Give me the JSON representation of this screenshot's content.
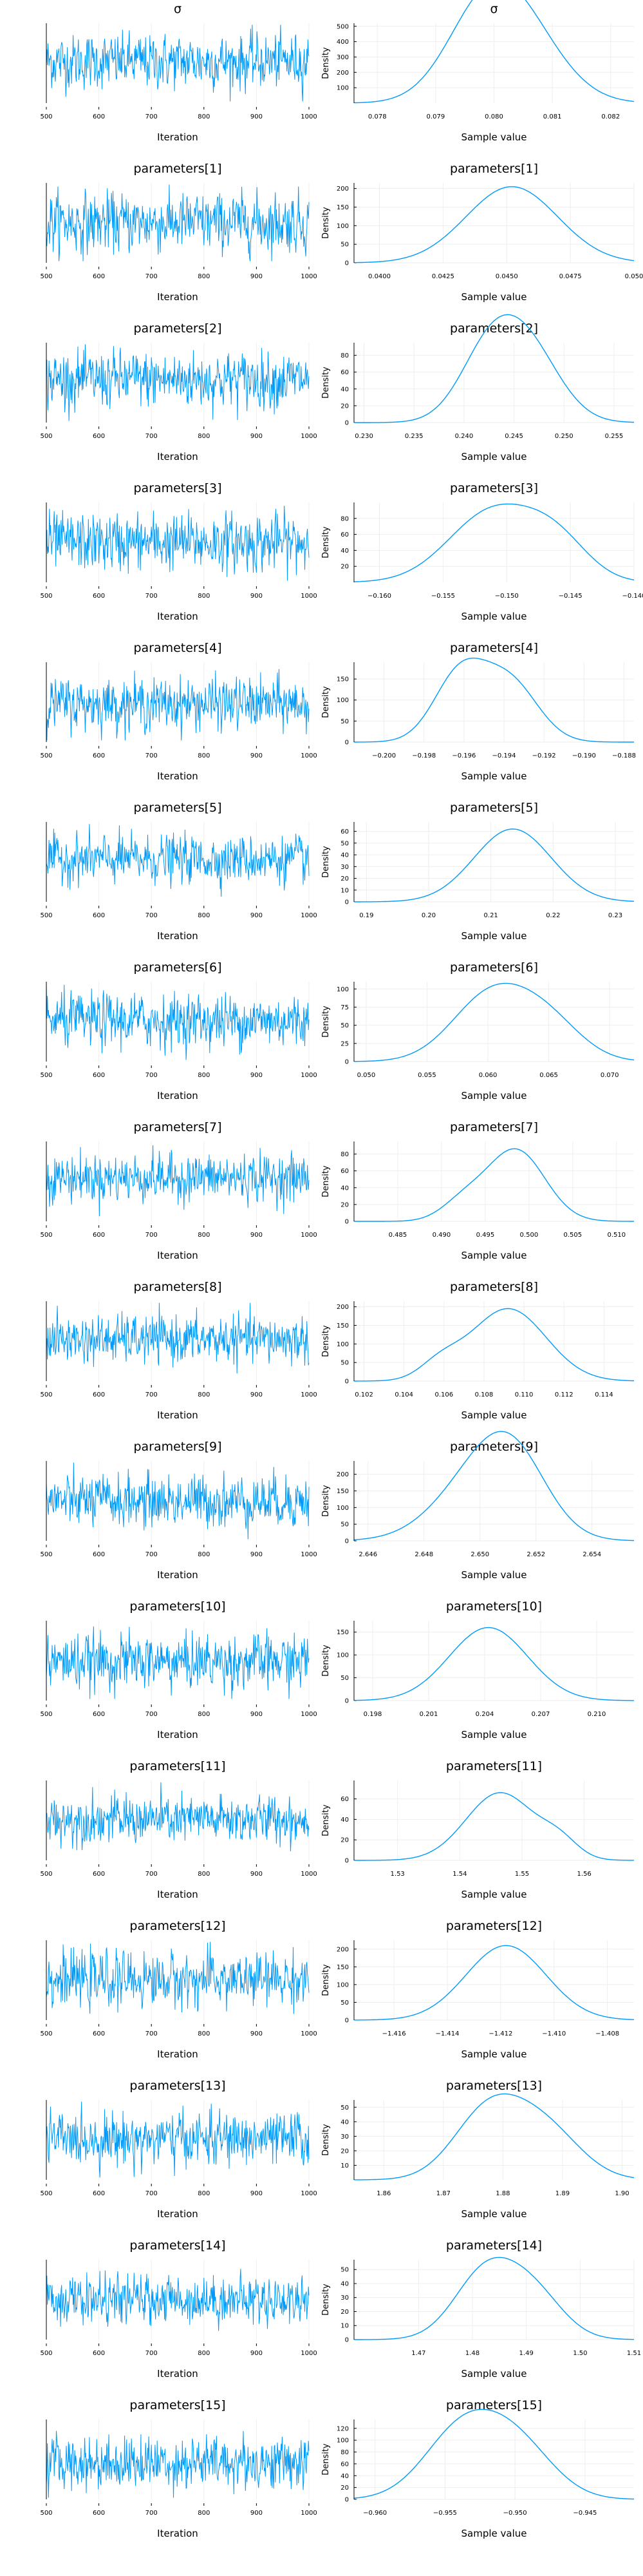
{
  "figure": {
    "title": "",
    "trace_xlabel": "Iteration",
    "density_xlabel": "Sample value",
    "density_ylabel": "Density",
    "line_color": "#009af9",
    "axis_color": "#000000",
    "grid_color": "#eeeeee",
    "iterations": [
      500,
      1000
    ],
    "trace_xticks": [
      500,
      600,
      700,
      800,
      900,
      1000
    ],
    "layout": "rows of trace plot (left) and density plot (right)"
  },
  "chart_data": [
    {
      "title": "σ",
      "trace": {
        "type": "line",
        "xlabel": "Iteration",
        "xlim": [
          500,
          1000
        ],
        "ylim": [
          0.0776,
          0.0824
        ],
        "mean": 0.0801,
        "sd": 0.0008
      },
      "density": {
        "type": "area",
        "xlabel": "Sample value",
        "ylabel": "Density",
        "xticks": [
          "0.078",
          "0.079",
          "0.080",
          "0.081",
          "0.082"
        ],
        "xlim": [
          0.0776,
          0.0824
        ],
        "yticks": [
          "100",
          "200",
          "300",
          "400",
          "500"
        ],
        "ylim": [
          0,
          520
        ],
        "peaks": [
          {
            "x": 0.0798,
            "y": 500,
            "w": 0.00065
          },
          {
            "x": 0.0805,
            "y": 410,
            "w": 0.0007
          }
        ]
      }
    },
    {
      "title": "parameters[1]",
      "trace": {
        "type": "line",
        "xlabel": "Iteration",
        "xlim": [
          500,
          1000
        ],
        "ylim": [
          0.0395,
          0.05
        ],
        "mean": 0.0448,
        "sd": 0.0019
      },
      "density": {
        "type": "area",
        "xlabel": "Sample value",
        "ylabel": "Density",
        "xticks": [
          "0.0400",
          "0.0425",
          "0.0450",
          "0.0475",
          "0.050"
        ],
        "xlim": [
          0.039,
          0.05
        ],
        "yticks": [
          "0",
          "50",
          "100",
          "150",
          "200"
        ],
        "ylim": [
          0,
          215
        ],
        "peaks": [
          {
            "x": 0.0452,
            "y": 205,
            "w": 0.0018
          }
        ]
      }
    },
    {
      "title": "parameters[2]",
      "trace": {
        "type": "line",
        "xlabel": "Iteration",
        "xlim": [
          500,
          1000
        ],
        "ylim": [
          0.23,
          0.256
        ],
        "mean": 0.244,
        "sd": 0.0045
      },
      "density": {
        "type": "area",
        "xlabel": "Sample value",
        "ylabel": "Density",
        "xticks": [
          "0.230",
          "0.235",
          "0.240",
          "0.245",
          "0.250",
          "0.255"
        ],
        "xlim": [
          0.229,
          0.257
        ],
        "yticks": [
          "0",
          "20",
          "40",
          "60",
          "80"
        ],
        "ylim": [
          0,
          95
        ],
        "peaks": [
          {
            "x": 0.2425,
            "y": 78,
            "w": 0.003
          },
          {
            "x": 0.2465,
            "y": 80,
            "w": 0.0032
          }
        ]
      }
    },
    {
      "title": "parameters[3]",
      "trace": {
        "type": "line",
        "xlabel": "Iteration",
        "xlim": [
          500,
          1000
        ],
        "ylim": [
          -0.162,
          -0.139
        ],
        "mean": -0.1505,
        "sd": 0.004
      },
      "density": {
        "type": "area",
        "xlabel": "Sample value",
        "ylabel": "Density",
        "xticks": [
          "-0.160",
          "-0.155",
          "-0.150",
          "-0.145",
          "-0.140"
        ],
        "xlim": [
          -0.162,
          -0.14
        ],
        "yticks": [
          "20",
          "40",
          "60",
          "80"
        ],
        "ylim": [
          0,
          100
        ],
        "peaks": [
          {
            "x": -0.151,
            "y": 90,
            "w": 0.0035
          },
          {
            "x": -0.146,
            "y": 42,
            "w": 0.0025
          }
        ]
      }
    },
    {
      "title": "parameters[4]",
      "trace": {
        "type": "line",
        "xlabel": "Iteration",
        "xlim": [
          500,
          1000
        ],
        "ylim": [
          -0.2015,
          -0.1875
        ],
        "mean": -0.1948,
        "sd": 0.0022
      },
      "density": {
        "type": "area",
        "xlabel": "Sample value",
        "ylabel": "Density",
        "xticks": [
          "-0.200",
          "-0.198",
          "-0.196",
          "-0.194",
          "-0.192",
          "-0.190",
          "-0.188"
        ],
        "xlim": [
          -0.2015,
          -0.1875
        ],
        "yticks": [
          "0",
          "50",
          "100",
          "150"
        ],
        "ylim": [
          0,
          190
        ],
        "peaks": [
          {
            "x": -0.1962,
            "y": 160,
            "w": 0.0013
          },
          {
            "x": -0.1937,
            "y": 140,
            "w": 0.0014
          }
        ]
      }
    },
    {
      "title": "parameters[5]",
      "trace": {
        "type": "line",
        "xlabel": "Iteration",
        "xlim": [
          500,
          1000
        ],
        "ylim": [
          0.188,
          0.233
        ],
        "mean": 0.212,
        "sd": 0.0065
      },
      "density": {
        "type": "area",
        "xlabel": "Sample value",
        "ylabel": "Density",
        "xticks": [
          "0.19",
          "0.20",
          "0.21",
          "0.22",
          "0.23"
        ],
        "xlim": [
          0.188,
          0.233
        ],
        "yticks": [
          "0",
          "10",
          "20",
          "30",
          "40",
          "50",
          "60"
        ],
        "ylim": [
          0,
          68
        ],
        "peaks": [
          {
            "x": 0.2135,
            "y": 62,
            "w": 0.0062
          }
        ]
      }
    },
    {
      "title": "parameters[6]",
      "trace": {
        "type": "line",
        "xlabel": "Iteration",
        "xlim": [
          500,
          1000
        ],
        "ylim": [
          0.049,
          0.072
        ],
        "mean": 0.0608,
        "sd": 0.0038
      },
      "density": {
        "type": "area",
        "xlabel": "Sample value",
        "ylabel": "Density",
        "xticks": [
          "0.050",
          "0.055",
          "0.060",
          "0.065",
          "0.070"
        ],
        "xlim": [
          0.049,
          0.072
        ],
        "yticks": [
          "0",
          "25",
          "50",
          "75",
          "100"
        ],
        "ylim": [
          0,
          110
        ],
        "peaks": [
          {
            "x": 0.0603,
            "y": 92,
            "w": 0.0032
          },
          {
            "x": 0.065,
            "y": 48,
            "w": 0.0028
          }
        ]
      }
    },
    {
      "title": "parameters[7]",
      "trace": {
        "type": "line",
        "xlabel": "Iteration",
        "xlim": [
          500,
          1000
        ],
        "ylim": [
          0.48,
          0.512
        ],
        "mean": 0.4975,
        "sd": 0.0046
      },
      "density": {
        "type": "area",
        "xlabel": "Sample value",
        "ylabel": "Density",
        "xticks": [
          "0.485",
          "0.490",
          "0.495",
          "0.500",
          "0.505",
          "0.510"
        ],
        "xlim": [
          0.48,
          0.512
        ],
        "yticks": [
          "0",
          "20",
          "40",
          "60",
          "80"
        ],
        "ylim": [
          0,
          95
        ],
        "peaks": [
          {
            "x": 0.4985,
            "y": 85,
            "w": 0.0033
          },
          {
            "x": 0.4925,
            "y": 22,
            "w": 0.0025
          }
        ]
      }
    },
    {
      "title": "parameters[8]",
      "trace": {
        "type": "line",
        "xlabel": "Iteration",
        "xlim": [
          500,
          1000
        ],
        "ylim": [
          0.1015,
          0.1155
        ],
        "mean": 0.1088,
        "sd": 0.002
      },
      "density": {
        "type": "area",
        "xlabel": "Sample value",
        "ylabel": "Density",
        "xticks": [
          "0.102",
          "0.104",
          "0.106",
          "0.108",
          "0.110",
          "0.112",
          "0.114"
        ],
        "xlim": [
          0.1015,
          0.1155
        ],
        "yticks": [
          "0",
          "50",
          "100",
          "150",
          "200"
        ],
        "ylim": [
          0,
          215
        ],
        "peaks": [
          {
            "x": 0.1092,
            "y": 195,
            "w": 0.0019
          },
          {
            "x": 0.1058,
            "y": 40,
            "w": 0.001
          }
        ]
      }
    },
    {
      "title": "parameters[9]",
      "trace": {
        "type": "line",
        "xlabel": "Iteration",
        "xlim": [
          500,
          1000
        ],
        "ylim": [
          2.6455,
          2.6555
        ],
        "mean": 2.6505,
        "sd": 0.0016
      },
      "density": {
        "type": "area",
        "xlabel": "Sample value",
        "ylabel": "Density",
        "xticks": [
          "2.646",
          "2.648",
          "2.650",
          "2.652",
          "2.654"
        ],
        "xlim": [
          2.6455,
          2.6555
        ],
        "yticks": [
          "0",
          "50",
          "100",
          "150",
          "200"
        ],
        "ylim": [
          0,
          240
        ],
        "peaks": [
          {
            "x": 2.6501,
            "y": 195,
            "w": 0.0016
          },
          {
            "x": 2.6512,
            "y": 160,
            "w": 0.0012
          }
        ]
      }
    },
    {
      "title": "parameters[10]",
      "trace": {
        "type": "line",
        "xlabel": "Iteration",
        "xlim": [
          500,
          1000
        ],
        "ylim": [
          0.197,
          0.212
        ],
        "mean": 0.2043,
        "sd": 0.0025
      },
      "density": {
        "type": "area",
        "xlabel": "Sample value",
        "ylabel": "Density",
        "xticks": [
          "0.198",
          "0.201",
          "0.204",
          "0.207",
          "0.210"
        ],
        "xlim": [
          0.197,
          0.212
        ],
        "yticks": [
          "0",
          "50",
          "100",
          "150"
        ],
        "ylim": [
          0,
          175
        ],
        "peaks": [
          {
            "x": 0.2042,
            "y": 160,
            "w": 0.0021
          }
        ]
      }
    },
    {
      "title": "parameters[11]",
      "trace": {
        "type": "line",
        "xlabel": "Iteration",
        "xlim": [
          500,
          1000
        ],
        "ylim": [
          1.523,
          1.568
        ],
        "mean": 1.546,
        "sd": 0.0065
      },
      "density": {
        "type": "area",
        "xlabel": "Sample value",
        "ylabel": "Density",
        "xticks": [
          "1.53",
          "1.54",
          "1.55",
          "1.56"
        ],
        "xlim": [
          1.523,
          1.568
        ],
        "yticks": [
          "0",
          "20",
          "40",
          "60"
        ],
        "ylim": [
          0,
          78
        ],
        "peaks": [
          {
            "x": 1.5465,
            "y": 66,
            "w": 0.0055
          },
          {
            "x": 1.556,
            "y": 16,
            "w": 0.003
          }
        ]
      }
    },
    {
      "title": "parameters[12]",
      "trace": {
        "type": "line",
        "xlabel": "Iteration",
        "xlim": [
          500,
          1000
        ],
        "ylim": [
          -1.4175,
          -1.407
        ],
        "mean": -1.4122,
        "sd": 0.0017
      },
      "density": {
        "type": "area",
        "xlabel": "Sample value",
        "ylabel": "Density",
        "xticks": [
          "-1.416",
          "-1.414",
          "-1.412",
          "-1.410",
          "-1.408"
        ],
        "xlim": [
          -1.4175,
          -1.407
        ],
        "yticks": [
          "0",
          "50",
          "100",
          "150",
          "200"
        ],
        "ylim": [
          0,
          225
        ],
        "peaks": [
          {
            "x": -1.4118,
            "y": 210,
            "w": 0.0015
          }
        ]
      }
    },
    {
      "title": "parameters[13]",
      "trace": {
        "type": "line",
        "xlabel": "Iteration",
        "xlim": [
          500,
          1000
        ],
        "ylim": [
          1.855,
          1.902
        ],
        "mean": 1.879,
        "sd": 0.0075
      },
      "density": {
        "type": "area",
        "xlabel": "Sample value",
        "ylabel": "Density",
        "xticks": [
          "1.86",
          "1.87",
          "1.88",
          "1.89",
          "1.90"
        ],
        "xlim": [
          1.855,
          1.902
        ],
        "yticks": [
          "10",
          "20",
          "30",
          "40",
          "50"
        ],
        "ylim": [
          0,
          55
        ],
        "peaks": [
          {
            "x": 1.8775,
            "y": 46,
            "w": 0.0058
          },
          {
            "x": 1.887,
            "y": 34,
            "w": 0.006
          }
        ]
      }
    },
    {
      "title": "parameters[14]",
      "trace": {
        "type": "line",
        "xlabel": "Iteration",
        "xlim": [
          500,
          1000
        ],
        "ylim": [
          1.458,
          1.51
        ],
        "mean": 1.484,
        "sd": 0.0075
      },
      "density": {
        "type": "area",
        "xlabel": "Sample value",
        "ylabel": "Density",
        "xticks": [
          "1.47",
          "1.48",
          "1.49",
          "1.50",
          "1.51"
        ],
        "xlim": [
          1.458,
          1.51
        ],
        "yticks": [
          "0",
          "10",
          "20",
          "30",
          "40",
          "50"
        ],
        "ylim": [
          0,
          57
        ],
        "peaks": [
          {
            "x": 1.4825,
            "y": 48,
            "w": 0.0058
          },
          {
            "x": 1.4915,
            "y": 30,
            "w": 0.0055
          }
        ]
      }
    },
    {
      "title": "parameters[15]",
      "trace": {
        "type": "line",
        "xlabel": "Iteration",
        "xlim": [
          500,
          1000
        ],
        "ylim": [
          -0.9615,
          -0.9415
        ],
        "mean": -0.9523,
        "sd": 0.0032
      },
      "density": {
        "type": "area",
        "xlabel": "Sample value",
        "ylabel": "Density",
        "xticks": [
          "-0.960",
          "-0.955",
          "-0.950",
          "-0.945"
        ],
        "xlim": [
          -0.9615,
          -0.9415
        ],
        "yticks": [
          "0",
          "20",
          "40",
          "60",
          "80",
          "100",
          "120"
        ],
        "ylim": [
          0,
          135
        ],
        "peaks": [
          {
            "x": -0.9538,
            "y": 115,
            "w": 0.0027
          },
          {
            "x": -0.9498,
            "y": 85,
            "w": 0.0026
          }
        ]
      }
    }
  ]
}
